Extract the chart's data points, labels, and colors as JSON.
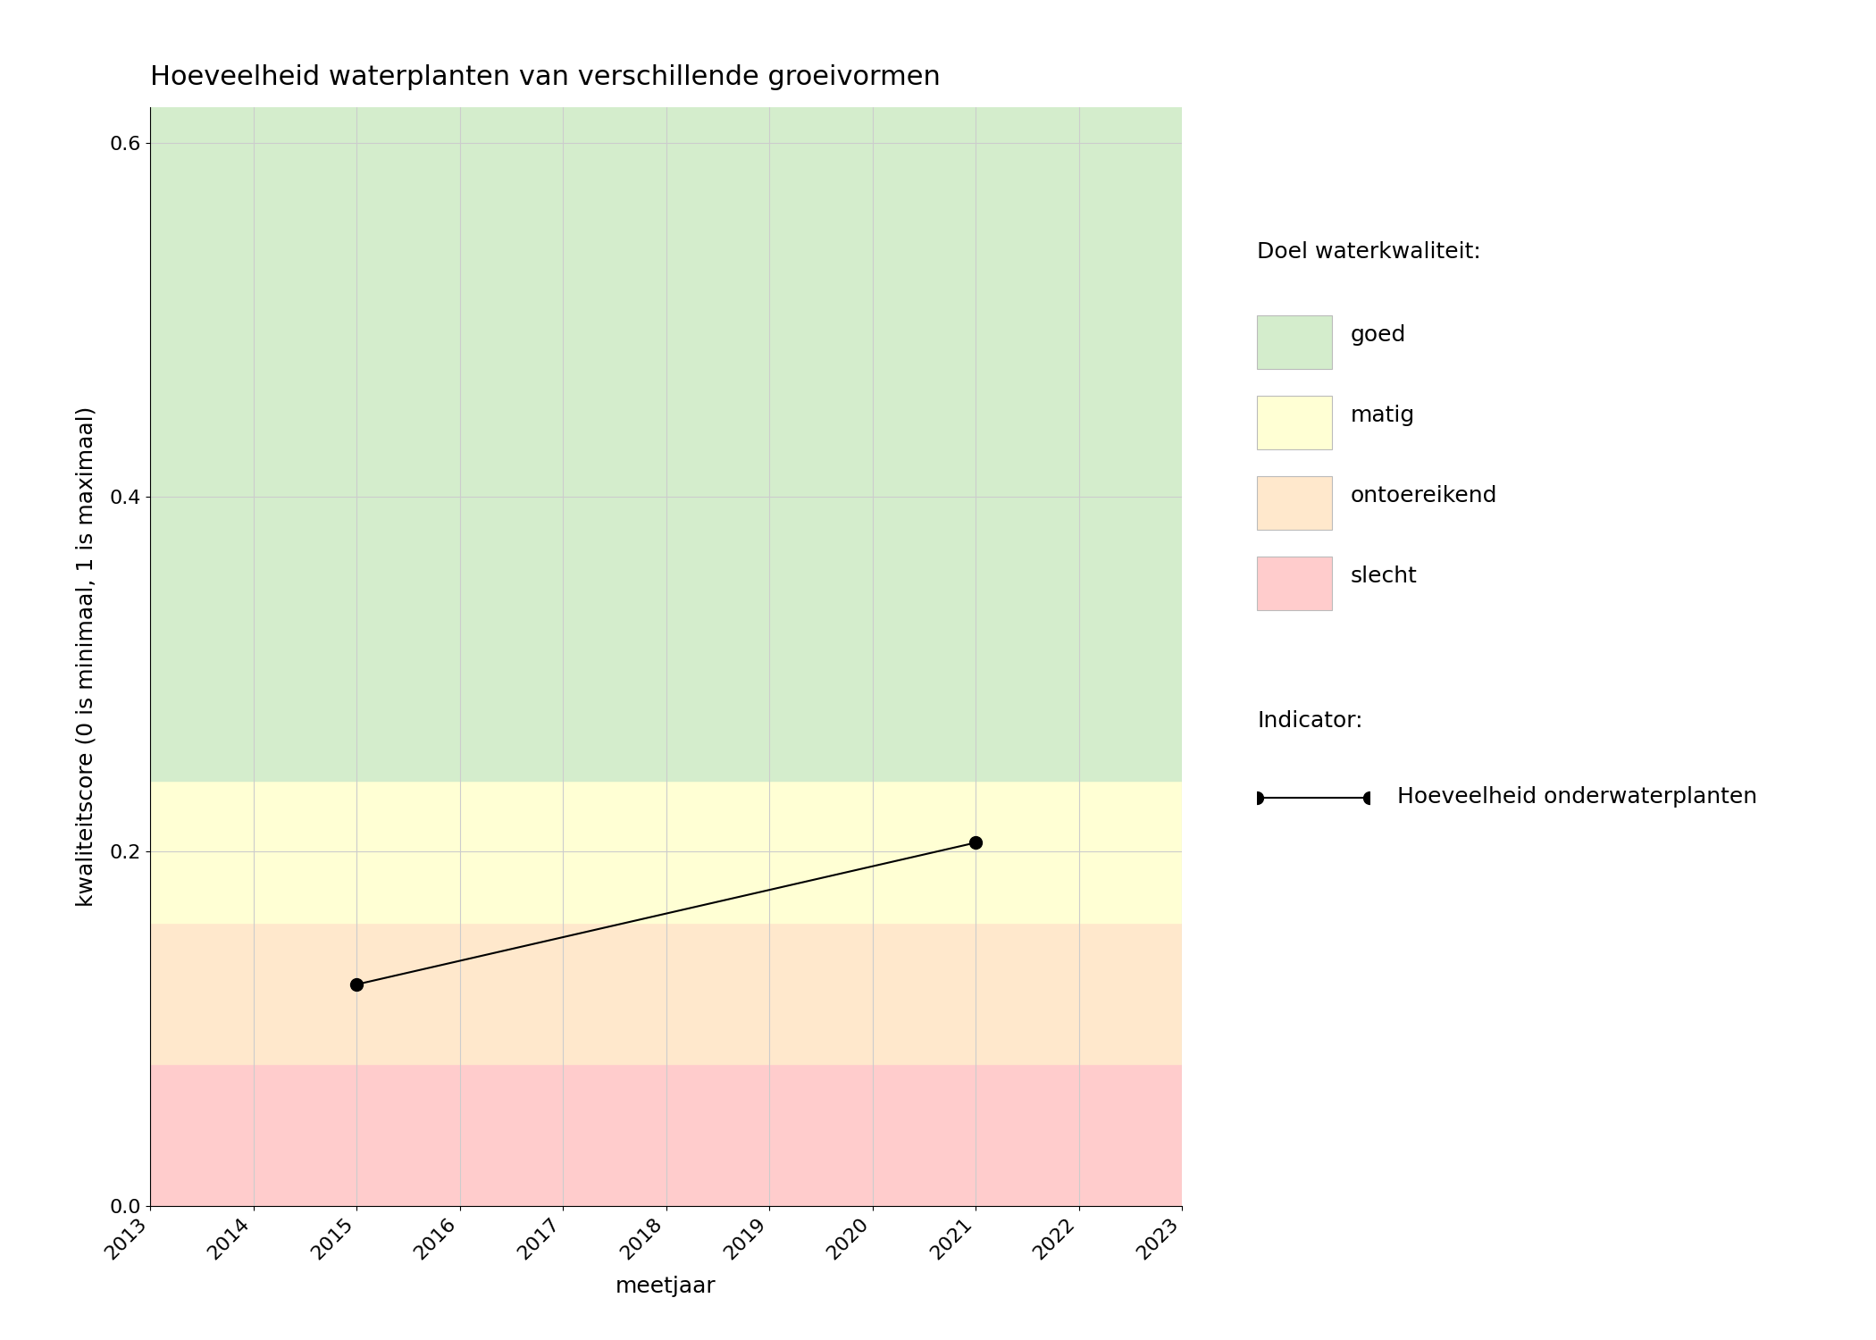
{
  "title": "Hoeveelheid waterplanten van verschillende groeivormen",
  "xlabel": "meetjaar",
  "ylabel": "kwaliteitscore (0 is minimaal, 1 is maximaal)",
  "xlim": [
    2013,
    2023
  ],
  "ylim": [
    0.0,
    0.62
  ],
  "yticks": [
    0.0,
    0.2,
    0.4,
    0.6
  ],
  "xticks": [
    2013,
    2014,
    2015,
    2016,
    2017,
    2018,
    2019,
    2020,
    2021,
    2022,
    2023
  ],
  "data_x": [
    2015,
    2021
  ],
  "data_y": [
    0.125,
    0.205
  ],
  "bg_bands": [
    {
      "ymin": 0.0,
      "ymax": 0.08,
      "color": "#ffcccc",
      "label": "slecht"
    },
    {
      "ymin": 0.08,
      "ymax": 0.16,
      "color": "#ffe8cc",
      "label": "ontoereikend"
    },
    {
      "ymin": 0.16,
      "ymax": 0.24,
      "color": "#ffffd4",
      "label": "matig"
    },
    {
      "ymin": 0.24,
      "ymax": 0.62,
      "color": "#d4edcc",
      "label": "goed"
    }
  ],
  "legend_doel_title": "Doel waterkwaliteit:",
  "legend_indicator_title": "Indicator:",
  "legend_indicator_label": "Hoeveelheid onderwaterplanten",
  "legend_colors": {
    "goed": "#d4edcc",
    "matig": "#ffffd4",
    "ontoereikend": "#ffe8cc",
    "slecht": "#ffcccc"
  },
  "line_color": "#000000",
  "marker_color": "#000000",
  "marker_size": 10,
  "line_width": 1.5,
  "title_fontsize": 22,
  "label_fontsize": 18,
  "tick_fontsize": 16,
  "legend_fontsize": 18,
  "background_color": "#ffffff",
  "grid_color": "#cccccc"
}
